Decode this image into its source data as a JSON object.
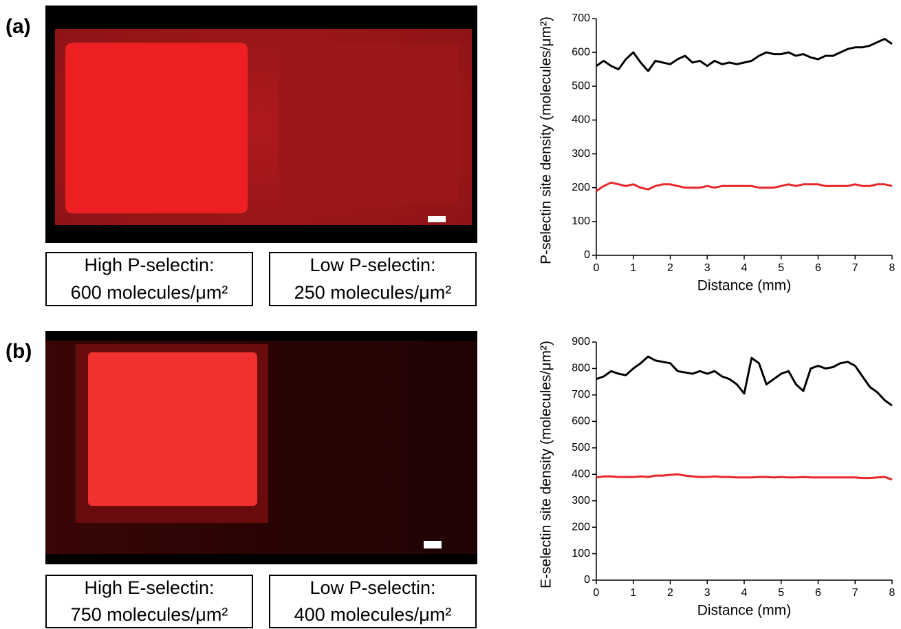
{
  "panels": [
    {
      "label": "(a)",
      "captions": [
        [
          "High P-selectin:",
          "600 molecules/μm²"
        ],
        [
          "Low P-selectin:",
          "250 molecules/μm²"
        ]
      ]
    },
    {
      "label": "(b)",
      "captions": [
        [
          "High E-selectin:",
          "750 molecules/μm²"
        ],
        [
          "Low P-selectin:",
          "400 molecules/μm²"
        ]
      ]
    }
  ],
  "chart_data": [
    {
      "type": "line",
      "xlabel": "Distance (mm)",
      "ylabel": "P-selectin site density (molecules/μm²)",
      "xlim": [
        0,
        8
      ],
      "xticks": [
        0,
        1,
        2,
        3,
        4,
        5,
        6,
        7,
        8
      ],
      "ylim": [
        0,
        700
      ],
      "yticks": [
        0,
        100,
        200,
        300,
        400,
        500,
        600,
        700
      ],
      "x": [
        0,
        0.2,
        0.4,
        0.6,
        0.8,
        1,
        1.2,
        1.4,
        1.6,
        1.8,
        2,
        2.2,
        2.4,
        2.6,
        2.8,
        3,
        3.2,
        3.4,
        3.6,
        3.8,
        4,
        4.2,
        4.4,
        4.6,
        4.8,
        5,
        5.2,
        5.4,
        5.6,
        5.8,
        6,
        6.2,
        6.4,
        6.6,
        6.8,
        7,
        7.2,
        7.4,
        7.6,
        7.8,
        8
      ],
      "series": [
        {
          "color": "#000000",
          "values": [
            560,
            575,
            560,
            550,
            580,
            600,
            570,
            545,
            575,
            570,
            565,
            580,
            590,
            570,
            575,
            560,
            575,
            565,
            570,
            565,
            570,
            575,
            590,
            600,
            595,
            595,
            600,
            590,
            595,
            585,
            580,
            590,
            590,
            600,
            610,
            615,
            615,
            620,
            630,
            640,
            625
          ]
        },
        {
          "color": "#e8262a",
          "values": [
            190,
            205,
            215,
            210,
            205,
            210,
            200,
            195,
            205,
            210,
            210,
            205,
            200,
            200,
            200,
            205,
            200,
            205,
            205,
            205,
            205,
            205,
            200,
            200,
            200,
            205,
            210,
            205,
            210,
            210,
            210,
            205,
            205,
            205,
            205,
            210,
            205,
            205,
            210,
            210,
            205
          ]
        }
      ]
    },
    {
      "type": "line",
      "xlabel": "Distance (mm)",
      "ylabel": "E-selectin site density (molecules/μm²)",
      "xlim": [
        0,
        8
      ],
      "xticks": [
        0,
        1,
        2,
        3,
        4,
        5,
        6,
        7,
        8
      ],
      "ylim": [
        0,
        900
      ],
      "yticks": [
        0,
        100,
        200,
        300,
        400,
        500,
        600,
        700,
        800,
        900
      ],
      "x": [
        0,
        0.2,
        0.4,
        0.6,
        0.8,
        1,
        1.2,
        1.4,
        1.6,
        1.8,
        2,
        2.2,
        2.4,
        2.6,
        2.8,
        3,
        3.2,
        3.4,
        3.6,
        3.8,
        4,
        4.2,
        4.4,
        4.6,
        4.8,
        5,
        5.2,
        5.4,
        5.6,
        5.8,
        6,
        6.2,
        6.4,
        6.6,
        6.8,
        7,
        7.2,
        7.4,
        7.6,
        7.8,
        8
      ],
      "series": [
        {
          "color": "#000000",
          "values": [
            760,
            770,
            790,
            780,
            775,
            800,
            820,
            845,
            830,
            825,
            820,
            790,
            785,
            780,
            790,
            780,
            790,
            770,
            760,
            740,
            705,
            840,
            820,
            740,
            760,
            780,
            790,
            740,
            715,
            800,
            810,
            800,
            805,
            820,
            825,
            810,
            770,
            730,
            710,
            680,
            660
          ]
        },
        {
          "color": "#e8262a",
          "values": [
            388,
            392,
            392,
            390,
            390,
            390,
            392,
            390,
            395,
            395,
            398,
            400,
            395,
            392,
            390,
            390,
            392,
            390,
            390,
            388,
            388,
            388,
            390,
            390,
            388,
            390,
            388,
            388,
            390,
            388,
            388,
            388,
            388,
            388,
            388,
            388,
            386,
            386,
            388,
            390,
            380
          ]
        }
      ]
    }
  ]
}
